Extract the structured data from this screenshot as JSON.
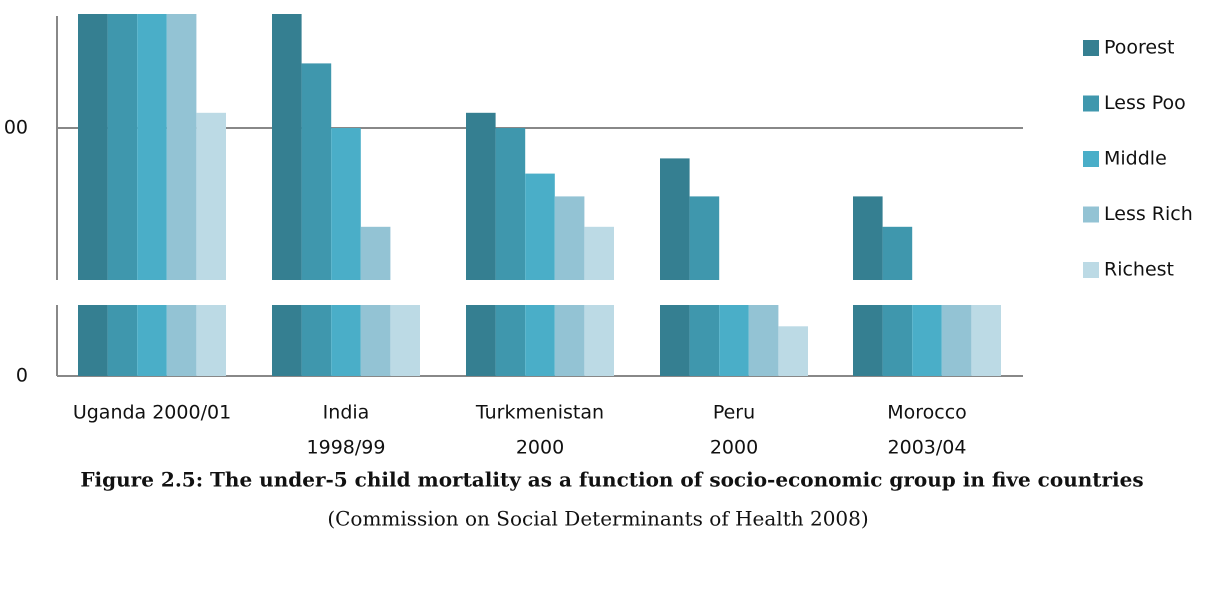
{
  "chart_data": {
    "type": "bar",
    "title": "Figure 2.5: The under-5 child mortality as a function of socio-economic group in five countries",
    "subtitle": "(Commission on Social Determinants of Health 2008)",
    "categories": [
      [
        "Uganda 2000/01"
      ],
      [
        "India",
        "1998/99"
      ],
      [
        "Turkmenistan",
        "2000"
      ],
      [
        "Peru",
        "2000"
      ],
      [
        "Morocco",
        "2003/04"
      ]
    ],
    "series": [
      {
        "name": "Poorest",
        "color": "#357f91",
        "values": [
          130,
          130,
          104,
          92,
          82
        ]
      },
      {
        "name": "Less Poo",
        "color": "#3f97ad",
        "values": [
          130,
          117,
          100,
          82,
          74
        ]
      },
      {
        "name": "Middle",
        "color": "#4aaec8",
        "values": [
          130,
          100,
          88,
          40,
          40
        ]
      },
      {
        "name": "Less Rich",
        "color": "#93c3d4",
        "values": [
          130,
          74,
          82,
          40,
          40
        ]
      },
      {
        "name": "Richest",
        "color": "#bcdae5",
        "values": [
          104,
          40,
          74,
          14,
          40
        ]
      }
    ],
    "ylim_lower": [
      0,
      20
    ],
    "ylim": [
      60,
      130
    ],
    "yticks": [
      0,
      {
        "value": 100,
        "label": "00"
      }
    ],
    "grid": true,
    "legend": "right"
  }
}
